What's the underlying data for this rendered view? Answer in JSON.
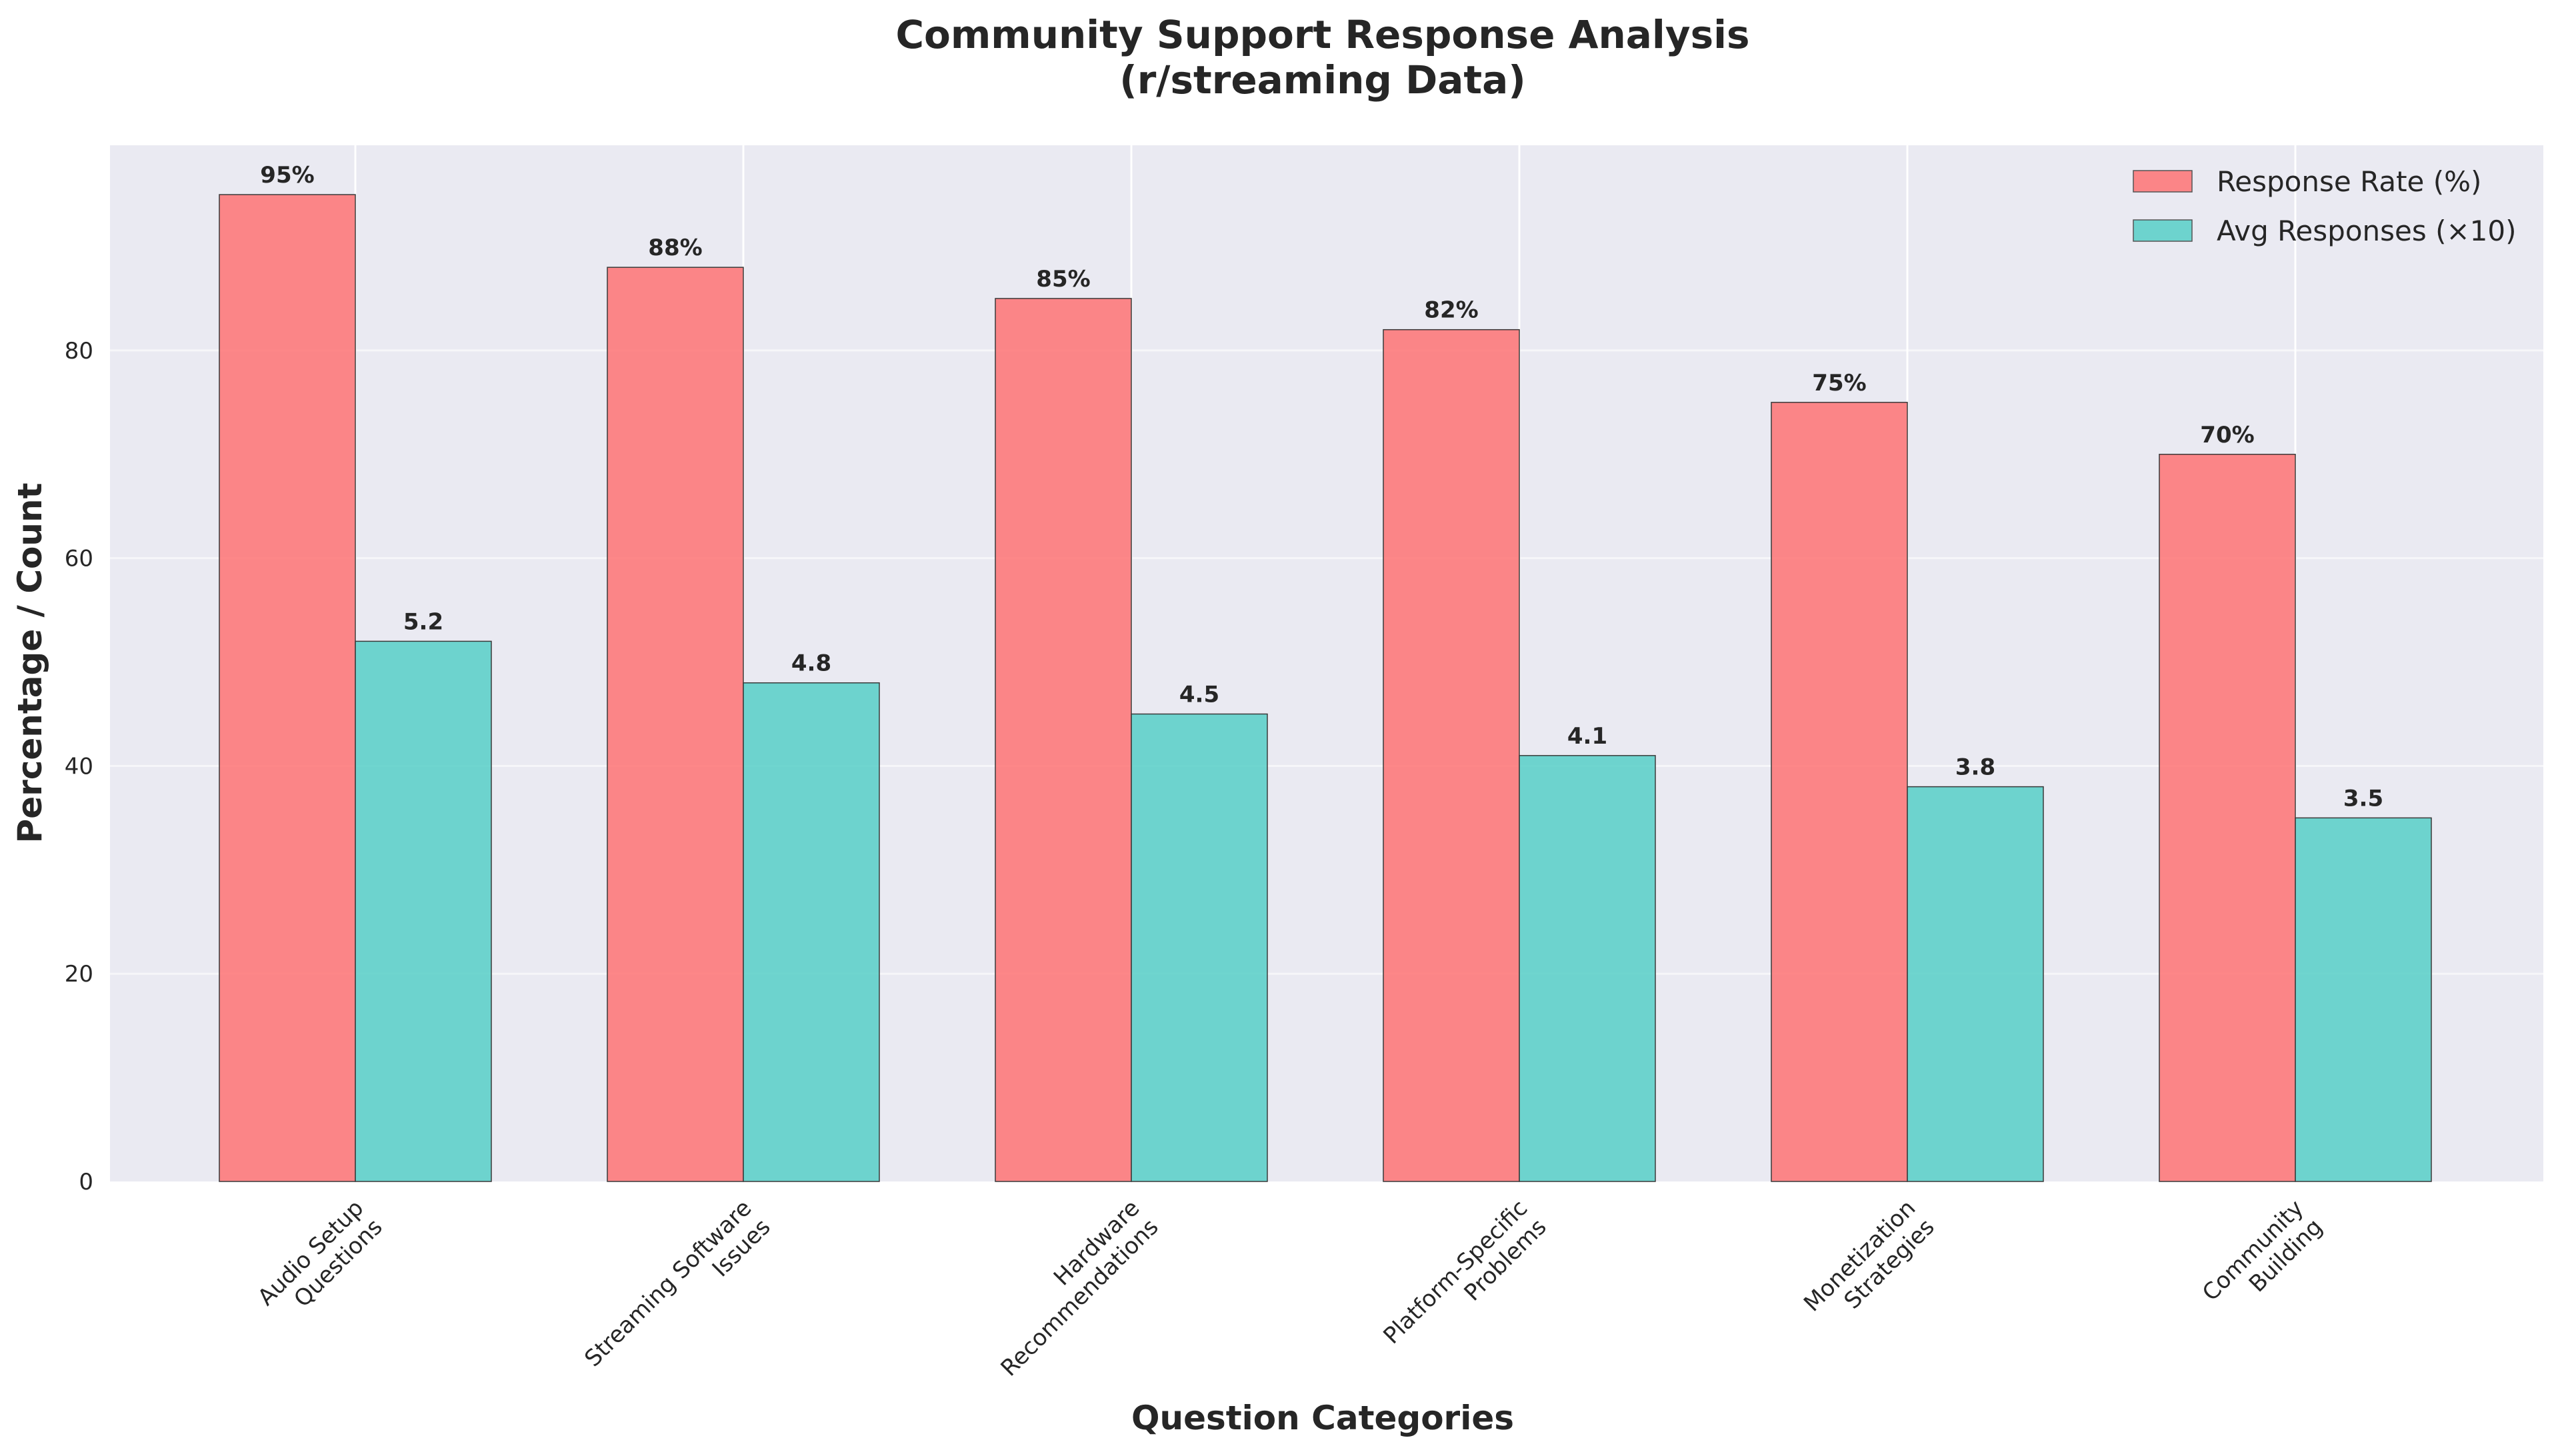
{
  "chart_data": {
    "type": "bar",
    "title_lines": [
      "Community Support Response Analysis",
      "(r/streaming Data)"
    ],
    "xlabel": "Question Categories",
    "ylabel": "Percentage / Count",
    "categories": [
      [
        "Audio Setup",
        "Questions"
      ],
      [
        "Streaming Software",
        "Issues"
      ],
      [
        "Hardware",
        "Recommendations"
      ],
      [
        "Platform-Specific",
        "Problems"
      ],
      [
        "Monetization",
        "Strategies"
      ],
      [
        "Community",
        "Building"
      ]
    ],
    "series": [
      {
        "name": "Response Rate (%)",
        "color": "#FF6B6B",
        "values": [
          95,
          88,
          85,
          82,
          75,
          70
        ],
        "labels": [
          "95%",
          "88%",
          "85%",
          "82%",
          "75%",
          "70%"
        ]
      },
      {
        "name": "Avg Responses (×10)",
        "color": "#4ECDC4",
        "values": [
          52,
          48,
          45,
          41,
          38,
          35
        ],
        "labels": [
          "5.2",
          "4.8",
          "4.5",
          "4.1",
          "3.8",
          "3.5"
        ]
      }
    ],
    "ylim": [
      0,
      99.75
    ],
    "yticks": [
      0,
      20,
      40,
      60,
      80
    ],
    "grid": true,
    "legend_position": "top-right",
    "background": "#EAEAF2"
  }
}
